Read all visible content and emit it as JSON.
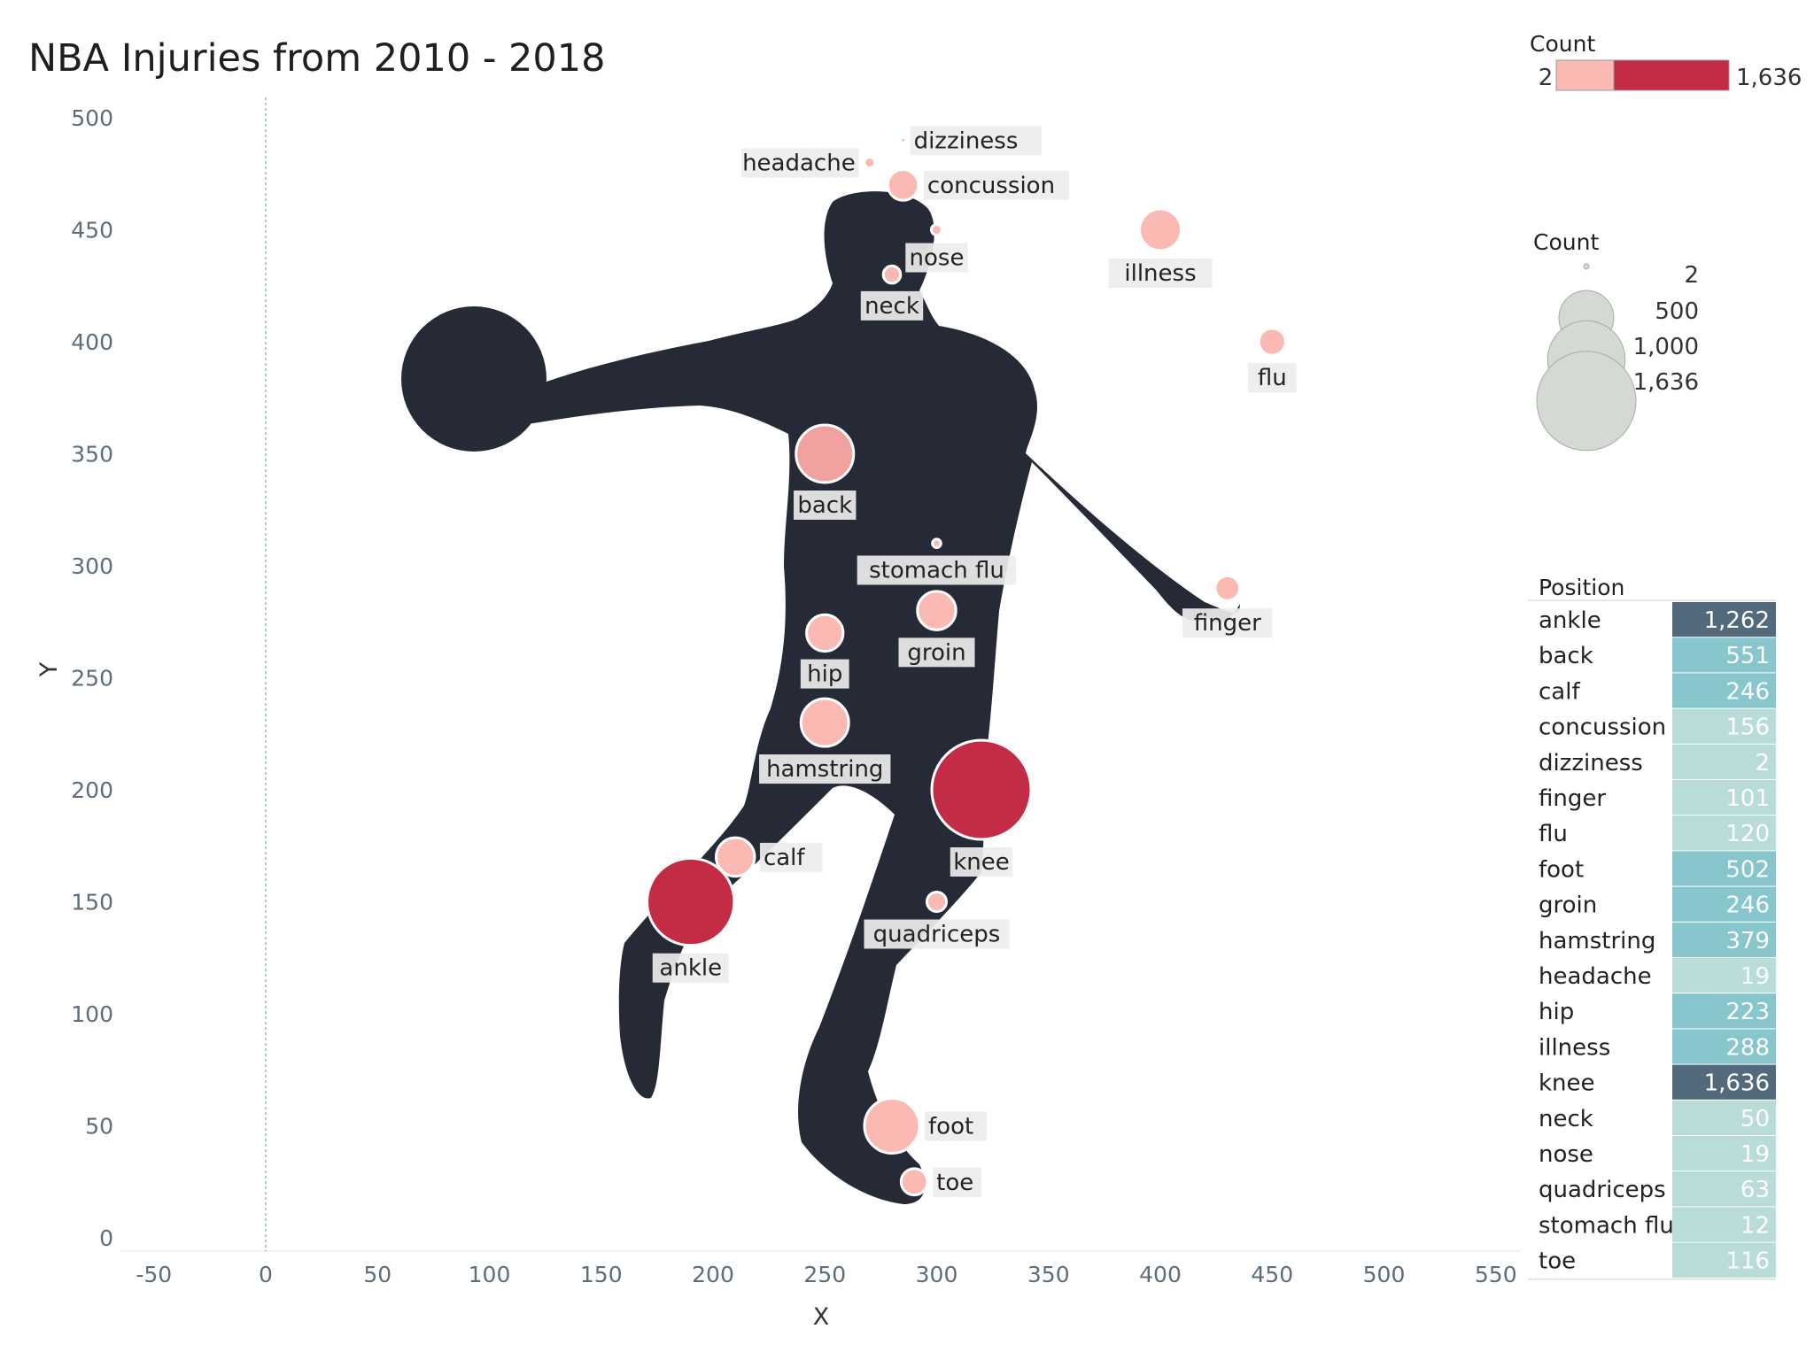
{
  "chart_data": {
    "type": "scatter",
    "title": "NBA Injuries from 2010 - 2018",
    "xlabel": "X",
    "ylabel": "Y",
    "xlim": [
      -60,
      560
    ],
    "ylim": [
      -5,
      515
    ],
    "xticks": [
      -50,
      0,
      50,
      100,
      150,
      200,
      250,
      300,
      350,
      400,
      450,
      500,
      550
    ],
    "yticks": [
      0,
      50,
      100,
      150,
      200,
      250,
      300,
      350,
      400,
      450,
      500
    ],
    "grid": false,
    "points": [
      {
        "label": "dizziness",
        "x": 285,
        "y": 490,
        "count": 2,
        "label_pos": "right"
      },
      {
        "label": "headache",
        "x": 270,
        "y": 480,
        "count": 19,
        "label_pos": "left"
      },
      {
        "label": "concussion",
        "x": 285,
        "y": 470,
        "count": 156,
        "label_pos": "right"
      },
      {
        "label": "nose",
        "x": 300,
        "y": 450,
        "count": 19,
        "label_pos": "below"
      },
      {
        "label": "illness",
        "x": 400,
        "y": 450,
        "count": 288,
        "label_pos": "below"
      },
      {
        "label": "neck",
        "x": 280,
        "y": 430,
        "count": 50,
        "label_pos": "below"
      },
      {
        "label": "flu",
        "x": 450,
        "y": 400,
        "count": 120,
        "label_pos": "below"
      },
      {
        "label": "back",
        "x": 250,
        "y": 350,
        "count": 551,
        "label_pos": "below"
      },
      {
        "label": "stomach flu",
        "x": 300,
        "y": 310,
        "count": 12,
        "label_pos": "below"
      },
      {
        "label": "finger",
        "x": 430,
        "y": 290,
        "count": 101,
        "label_pos": "below"
      },
      {
        "label": "groin",
        "x": 300,
        "y": 280,
        "count": 246,
        "label_pos": "below"
      },
      {
        "label": "hip",
        "x": 250,
        "y": 270,
        "count": 223,
        "label_pos": "below"
      },
      {
        "label": "hamstring",
        "x": 250,
        "y": 230,
        "count": 379,
        "label_pos": "below"
      },
      {
        "label": "knee",
        "x": 320,
        "y": 200,
        "count": 1636,
        "label_pos": "below"
      },
      {
        "label": "calf",
        "x": 210,
        "y": 170,
        "count": 246,
        "label_pos": "right"
      },
      {
        "label": "quadriceps",
        "x": 300,
        "y": 150,
        "count": 63,
        "label_pos": "below"
      },
      {
        "label": "ankle",
        "x": 190,
        "y": 150,
        "count": 1262,
        "label_pos": "below"
      },
      {
        "label": "foot",
        "x": 280,
        "y": 50,
        "count": 502,
        "label_pos": "right"
      },
      {
        "label": "toe",
        "x": 290,
        "y": 25,
        "count": 116,
        "label_pos": "right"
      }
    ],
    "color_legend": {
      "title": "Count",
      "min_label": "2",
      "max_label": "1,636",
      "colors": [
        "#fbb9b3",
        "#c32c44"
      ]
    },
    "size_legend": {
      "title": "Count",
      "items": [
        {
          "label": "2",
          "value": 2
        },
        {
          "label": "500",
          "value": 500
        },
        {
          "label": "1,000",
          "value": 1000
        },
        {
          "label": "1,636",
          "value": 1636
        }
      ]
    },
    "table": {
      "header": "Position",
      "rows": [
        {
          "name": "ankle",
          "value": "1,262",
          "count": 1262
        },
        {
          "name": "back",
          "value": "551",
          "count": 551
        },
        {
          "name": "calf",
          "value": "246",
          "count": 246
        },
        {
          "name": "concussion",
          "value": "156",
          "count": 156
        },
        {
          "name": "dizziness",
          "value": "2",
          "count": 2
        },
        {
          "name": "finger",
          "value": "101",
          "count": 101
        },
        {
          "name": "flu",
          "value": "120",
          "count": 120
        },
        {
          "name": "foot",
          "value": "502",
          "count": 502
        },
        {
          "name": "groin",
          "value": "246",
          "count": 246
        },
        {
          "name": "hamstring",
          "value": "379",
          "count": 379
        },
        {
          "name": "headache",
          "value": "19",
          "count": 19
        },
        {
          "name": "hip",
          "value": "223",
          "count": 223
        },
        {
          "name": "illness",
          "value": "288",
          "count": 288
        },
        {
          "name": "knee",
          "value": "1,636",
          "count": 1636
        },
        {
          "name": "neck",
          "value": "50",
          "count": 50
        },
        {
          "name": "nose",
          "value": "19",
          "count": 19
        },
        {
          "name": "quadriceps",
          "value": "63",
          "count": 63
        },
        {
          "name": "stomach flu",
          "value": "12",
          "count": 12
        },
        {
          "name": "toe",
          "value": "116",
          "count": 116
        }
      ]
    },
    "colors": {
      "silhouette": "#262a36",
      "low": "#fbb9b3",
      "high": "#c32c44",
      "table_high": "#53697c",
      "table_mid": "#86c6cc",
      "table_low": "#b9dcd9"
    }
  }
}
